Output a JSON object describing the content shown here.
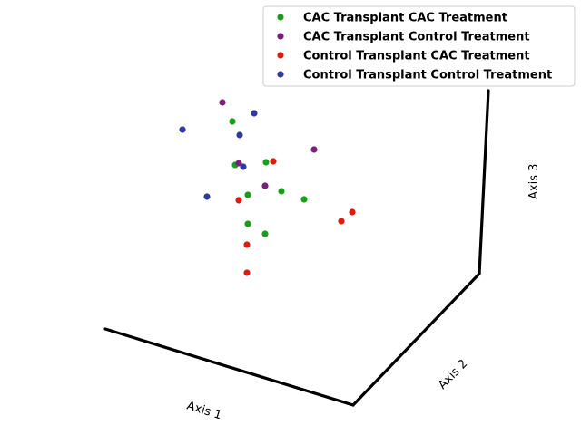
{
  "chart_data": {
    "type": "scatter",
    "projection": "3d",
    "axes": {
      "x": {
        "label": "Axis 1"
      },
      "y": {
        "label": "Axis 2"
      },
      "z": {
        "label": "Axis 3"
      }
    },
    "legend_position": "top-right",
    "grid": false,
    "series": [
      {
        "name": "CAC Transplant CAC Treatment",
        "color": "#1a9e1a",
        "points": [
          [
            256,
            134
          ],
          [
            259,
            182
          ],
          [
            293,
            179
          ],
          [
            273,
            215
          ],
          [
            310,
            211
          ],
          [
            335,
            220
          ],
          [
            273,
            247
          ],
          [
            292,
            258
          ]
        ]
      },
      {
        "name": "CAC Transplant Control Treatment",
        "color": "#7b1f7b",
        "points": [
          [
            245,
            113
          ],
          [
            346,
            165
          ],
          [
            263,
            180
          ],
          [
            292,
            205
          ]
        ]
      },
      {
        "name": "Control Transplant CAC Treatment",
        "color": "#e01a10",
        "points": [
          [
            301,
            178
          ],
          [
            263,
            221
          ],
          [
            376,
            244
          ],
          [
            388,
            234
          ],
          [
            272,
            270
          ],
          [
            272,
            301
          ]
        ]
      },
      {
        "name": "Control Transplant Control Treatment",
        "color": "#2e3a9e",
        "points": [
          [
            201,
            143
          ],
          [
            280,
            125
          ],
          [
            264,
            149
          ],
          [
            268,
            184
          ],
          [
            228,
            217
          ]
        ]
      }
    ]
  }
}
